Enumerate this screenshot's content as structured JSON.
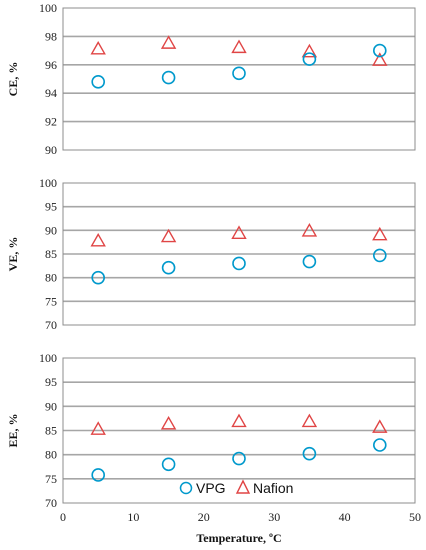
{
  "chart_data": [
    {
      "type": "scatter",
      "ylabel": "CE, %",
      "ylim": [
        90,
        100
      ],
      "yticks": [
        90,
        92,
        94,
        96,
        98,
        100
      ],
      "series": [
        {
          "name": "VPG",
          "x": [
            5,
            15,
            25,
            35,
            45
          ],
          "y": [
            94.8,
            95.1,
            95.4,
            96.4,
            97.0
          ]
        },
        {
          "name": "Nafion",
          "x": [
            5,
            15,
            25,
            35,
            45
          ],
          "y": [
            97.1,
            97.5,
            97.2,
            96.9,
            96.3
          ]
        }
      ]
    },
    {
      "type": "scatter",
      "ylabel": "VE, %",
      "ylim": [
        70,
        100
      ],
      "yticks": [
        70,
        75,
        80,
        85,
        90,
        95,
        100
      ],
      "series": [
        {
          "name": "VPG",
          "x": [
            5,
            15,
            25,
            35,
            45
          ],
          "y": [
            80.0,
            82.1,
            83.0,
            83.4,
            84.7
          ]
        },
        {
          "name": "Nafion",
          "x": [
            5,
            15,
            25,
            35,
            45
          ],
          "y": [
            87.7,
            88.6,
            89.3,
            89.8,
            89.0
          ]
        }
      ]
    },
    {
      "type": "scatter",
      "ylabel": "EE, %",
      "xlabel": "Temperature, ºC",
      "xlim": [
        0,
        50
      ],
      "xticks": [
        0,
        10,
        20,
        30,
        40,
        50
      ],
      "ylim": [
        70,
        100
      ],
      "yticks": [
        70,
        75,
        80,
        85,
        90,
        95,
        100
      ],
      "series": [
        {
          "name": "VPG",
          "x": [
            5,
            15,
            25,
            35,
            45
          ],
          "y": [
            75.8,
            78.0,
            79.2,
            80.2,
            82.0
          ]
        },
        {
          "name": "Nafion",
          "x": [
            5,
            15,
            25,
            35,
            45
          ],
          "y": [
            85.2,
            86.3,
            86.8,
            86.8,
            85.6
          ]
        }
      ]
    }
  ],
  "legend": {
    "position": "bottom-center",
    "items": [
      {
        "label": "VPG",
        "marker": "circle",
        "color": "#0099CC"
      },
      {
        "label": "Nafion",
        "marker": "triangle",
        "color": "#E04545"
      }
    ]
  },
  "colors": {
    "vpg": "#0099CC",
    "nafion": "#E04545",
    "grid": "#A6A6A6",
    "frame": "#8C8C8C"
  }
}
